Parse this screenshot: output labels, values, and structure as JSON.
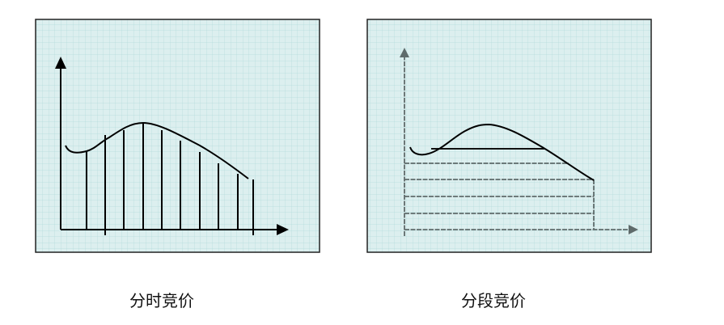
{
  "diagrams": [
    {
      "caption": "分时竞价"
    },
    {
      "caption": "分段竞价"
    }
  ],
  "colors": {
    "panel_background": "#dcefef",
    "grid": "#b5dcdc",
    "ink": "#000000",
    "dashed_gray": "#5f6b6b"
  }
}
